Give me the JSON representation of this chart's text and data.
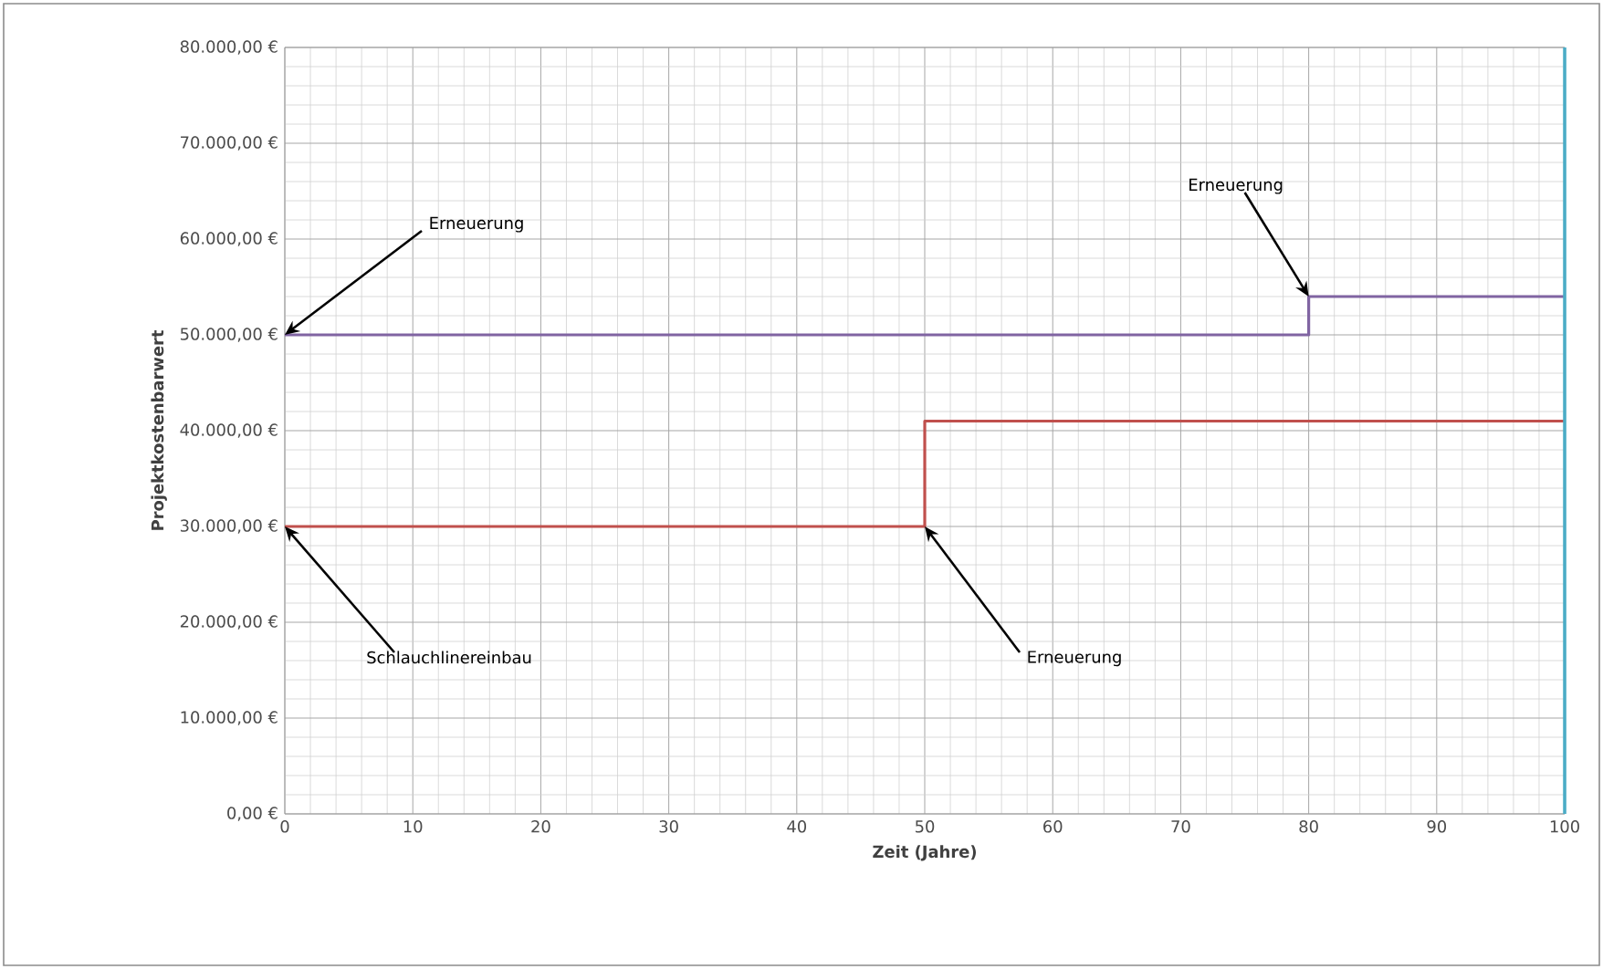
{
  "chart_data": {
    "type": "step",
    "xlabel": "Zeit (Jahre)",
    "ylabel": "Projektkostenbarwert",
    "xlim": [
      0,
      100
    ],
    "xticks": [
      0,
      10,
      20,
      30,
      40,
      50,
      60,
      70,
      80,
      90,
      100
    ],
    "ylim": [
      0,
      80000
    ],
    "yticks": [
      {
        "value": 0,
        "label": "0,00 €"
      },
      {
        "value": 10000,
        "label": "10.000,00 €"
      },
      {
        "value": 20000,
        "label": "20.000,00 €"
      },
      {
        "value": 30000,
        "label": "30.000,00 €"
      },
      {
        "value": 40000,
        "label": "40.000,00 €"
      },
      {
        "value": 50000,
        "label": "50.000,00 €"
      },
      {
        "value": 60000,
        "label": "60.000,00 €"
      },
      {
        "value": 70000,
        "label": "70.000,00 €"
      },
      {
        "value": 80000,
        "label": "80.000,00 €"
      }
    ],
    "grid": true,
    "series": [
      {
        "color": "#8064a2",
        "x": [
          0,
          80,
          100
        ],
        "values": [
          50000,
          54000,
          54000
        ]
      },
      {
        "color": "#c0504d",
        "x": [
          0,
          50,
          100
        ],
        "values": [
          30000,
          41000,
          41000
        ]
      }
    ],
    "ref_lines": [
      {
        "axis": "x",
        "value": 100,
        "color": "#4bacc6"
      }
    ],
    "annotations": [
      {
        "text": "Erneuerung",
        "x": 0,
        "y": 50000
      },
      {
        "text": "Schlauchlinereinbau",
        "x": 0,
        "y": 30000
      },
      {
        "text": "Erneuerung",
        "x": 50,
        "y": 30000
      },
      {
        "text": "Erneuerung",
        "x": 80,
        "y": 54000
      }
    ]
  }
}
